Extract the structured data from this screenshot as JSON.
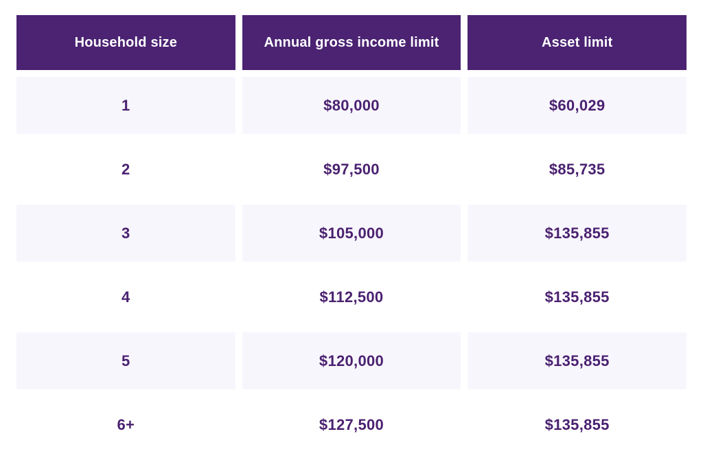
{
  "colors": {
    "header_bg": "#4B2372",
    "header_text": "#FFFFFF",
    "alt_row_bg": "#F8F6FD",
    "row_bg": "#FFFFFF",
    "cell_text": "#4A2170"
  },
  "table": {
    "columns": [
      "Household size",
      "Annual gross income limit",
      "Asset limit"
    ],
    "rows": [
      {
        "cells": [
          "1",
          "$80,000",
          "$60,029"
        ]
      },
      {
        "cells": [
          "2",
          "$97,500",
          "$85,735"
        ]
      },
      {
        "cells": [
          "3",
          "$105,000",
          "$135,855"
        ]
      },
      {
        "cells": [
          "4",
          "$112,500",
          "$135,855"
        ]
      },
      {
        "cells": [
          "5",
          "$120,000",
          "$135,855"
        ]
      },
      {
        "cells": [
          "6+",
          "$127,500",
          "$135,855"
        ]
      }
    ]
  },
  "chart_data": {
    "type": "table",
    "columns": [
      "Household size",
      "Annual gross income limit",
      "Asset limit"
    ],
    "rows": [
      [
        "1",
        "$80,000",
        "$60,029"
      ],
      [
        "2",
        "$97,500",
        "$85,735"
      ],
      [
        "3",
        "$105,000",
        "$135,855"
      ],
      [
        "4",
        "$112,500",
        "$135,855"
      ],
      [
        "5",
        "$120,000",
        "$135,855"
      ],
      [
        "6+",
        "$127,500",
        "$135,855"
      ]
    ]
  }
}
